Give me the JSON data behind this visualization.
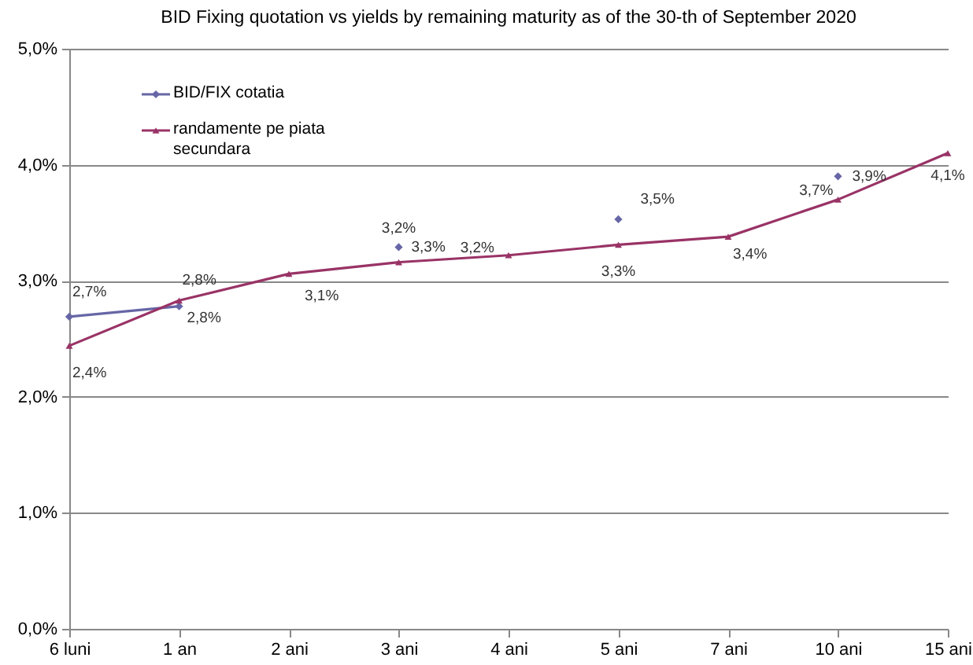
{
  "chart_data": {
    "type": "line",
    "title": "BID Fixing quotation vs yields by remaining maturity as of the 30-th of  September 2020",
    "categories": [
      "6 luni",
      "1 an",
      "2 ani",
      "3 ani",
      "4 ani",
      "5 ani",
      "7 ani",
      "10 ani",
      "15 ani"
    ],
    "series": [
      {
        "name": "BID/FIX cotatia",
        "color": "#6666a6",
        "marker": "diamond",
        "line_style": "solid",
        "values": [
          2.69,
          2.78,
          null,
          3.29,
          null,
          3.53,
          null,
          3.9,
          null
        ],
        "value_labels": [
          "2,7%",
          "2,8%",
          null,
          "3,3%",
          null,
          "3,5%",
          null,
          "3,9%",
          null
        ]
      },
      {
        "name": "randamente pe piata secundara",
        "color": "#993366",
        "marker": "triangle",
        "line_style": "solid",
        "values": [
          2.44,
          2.83,
          3.06,
          3.16,
          3.22,
          3.31,
          3.38,
          3.7,
          4.1
        ],
        "value_labels": [
          "2,4%",
          "2,8%",
          "3,1%",
          "3,2%",
          "3,2%",
          "3,3%",
          "3,4%",
          "3,7%",
          "4,1%"
        ]
      }
    ],
    "ylim": [
      0,
      5
    ],
    "yticks": [
      {
        "value": 0,
        "label": "0,0%"
      },
      {
        "value": 1,
        "label": "1,0%"
      },
      {
        "value": 2,
        "label": "2,0%"
      },
      {
        "value": 3,
        "label": "3,0%"
      },
      {
        "value": 4,
        "label": "4,0%"
      },
      {
        "value": 5,
        "label": "5,0%"
      }
    ],
    "grid": "y",
    "legend": "top left"
  }
}
